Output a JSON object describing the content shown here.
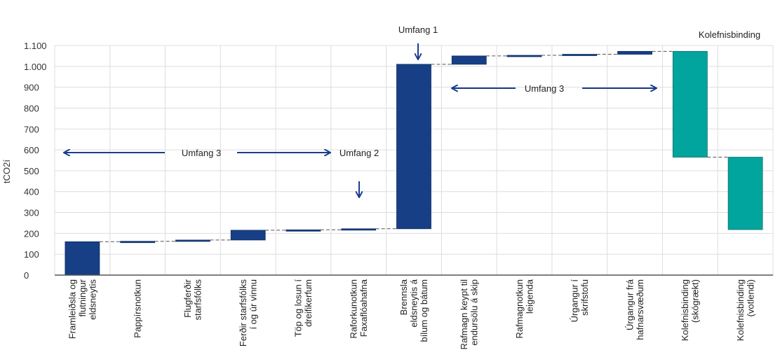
{
  "chart_data": {
    "type": "waterfall",
    "title": "",
    "ylabel": "tCO2í",
    "xlabel": "",
    "ylim": [
      0,
      1100
    ],
    "yticks": [
      0,
      100,
      200,
      300,
      400,
      500,
      600,
      700,
      800,
      900,
      1000,
      1100
    ],
    "ytick_labels": [
      "0",
      "100",
      "200",
      "300",
      "400",
      "500",
      "600",
      "700",
      "800",
      "900",
      "1.000",
      "1.100"
    ],
    "grid": true,
    "categories": [
      {
        "label": [
          "Framleiðsla og",
          "flutningur",
          "eldsneytis"
        ],
        "start": 0,
        "end": 160,
        "color": "#163f85"
      },
      {
        "label": [
          "Pappírsnotkun"
        ],
        "start": 160,
        "end": 162,
        "color": "#163f85"
      },
      {
        "label": [
          "Flugferðir",
          "starfsfólks"
        ],
        "start": 162,
        "end": 168,
        "color": "#163f85"
      },
      {
        "label": [
          "Ferðir starfsfólks",
          "í og úr vinnu"
        ],
        "start": 168,
        "end": 215,
        "color": "#163f85"
      },
      {
        "label": [
          "Töp og losun í",
          "dreifikerfum"
        ],
        "start": 215,
        "end": 217,
        "color": "#163f85"
      },
      {
        "label": [
          "Raforkunotkun",
          "Faxaflóahafna"
        ],
        "start": 217,
        "end": 222,
        "color": "#163f85"
      },
      {
        "label": [
          "Brennsla",
          "eldsneytis á",
          "bílum og bátum"
        ],
        "start": 222,
        "end": 1010,
        "color": "#163f85"
      },
      {
        "label": [
          "Rafmagn keypt til",
          "endursölu á skip"
        ],
        "start": 1010,
        "end": 1050,
        "color": "#163f85"
      },
      {
        "label": [
          "Rafmagnotkun",
          "leigenda"
        ],
        "start": 1050,
        "end": 1053,
        "color": "#163f85"
      },
      {
        "label": [
          "Úrgangur í",
          "skrifstofu"
        ],
        "start": 1053,
        "end": 1058,
        "color": "#163f85"
      },
      {
        "label": [
          "Úrgangur frá",
          "hafnarsvæðum"
        ],
        "start": 1058,
        "end": 1072,
        "color": "#163f85"
      },
      {
        "label": [
          "Kolefnisbinding",
          "(skógrækt)"
        ],
        "start": 1072,
        "end": 565,
        "color": "#02a59e"
      },
      {
        "label": [
          "Kolefnisbinding",
          "(votlendi)"
        ],
        "start": 565,
        "end": 218,
        "color": "#02a59e"
      }
    ],
    "annotations": {
      "umfang1": "Umfang 1",
      "umfang2": "Umfang 2",
      "umfang3_left": "Umfang 3",
      "umfang3_right": "Umfang 3",
      "kolefnisbinding": "Kolefnisbinding"
    },
    "colors": {
      "emission": "#163f85",
      "sequestration": "#02a59e",
      "arrow": "#1a3d8f",
      "grid": "#dddddd"
    }
  }
}
